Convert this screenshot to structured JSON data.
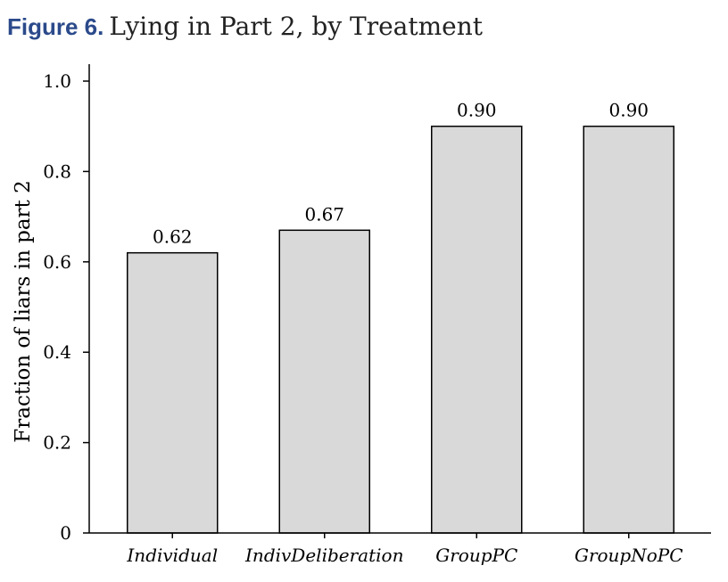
{
  "figure": {
    "label": "Figure 6.",
    "text": "Lying in Part 2, by Treatment"
  },
  "chart_data": {
    "type": "bar",
    "categories": [
      "Individual",
      "IndivDeliberation",
      "GroupPC",
      "GroupNoPC"
    ],
    "values": [
      0.62,
      0.67,
      0.9,
      0.9
    ],
    "data_labels": [
      "0.62",
      "0.67",
      "0.90",
      "0.90"
    ],
    "ylabel": "Fraction of liars in part 2",
    "xlabel": "",
    "ylim": [
      0,
      1.0
    ],
    "yticks": [
      0,
      0.2,
      0.4,
      0.6,
      0.8,
      1.0
    ],
    "ytick_labels": [
      "0",
      "0.2",
      "0.4",
      "0.6",
      "0.8",
      "1.0"
    ],
    "bar_color": "#d9d9d9",
    "bar_edge_color": "#000000",
    "grid": false
  }
}
